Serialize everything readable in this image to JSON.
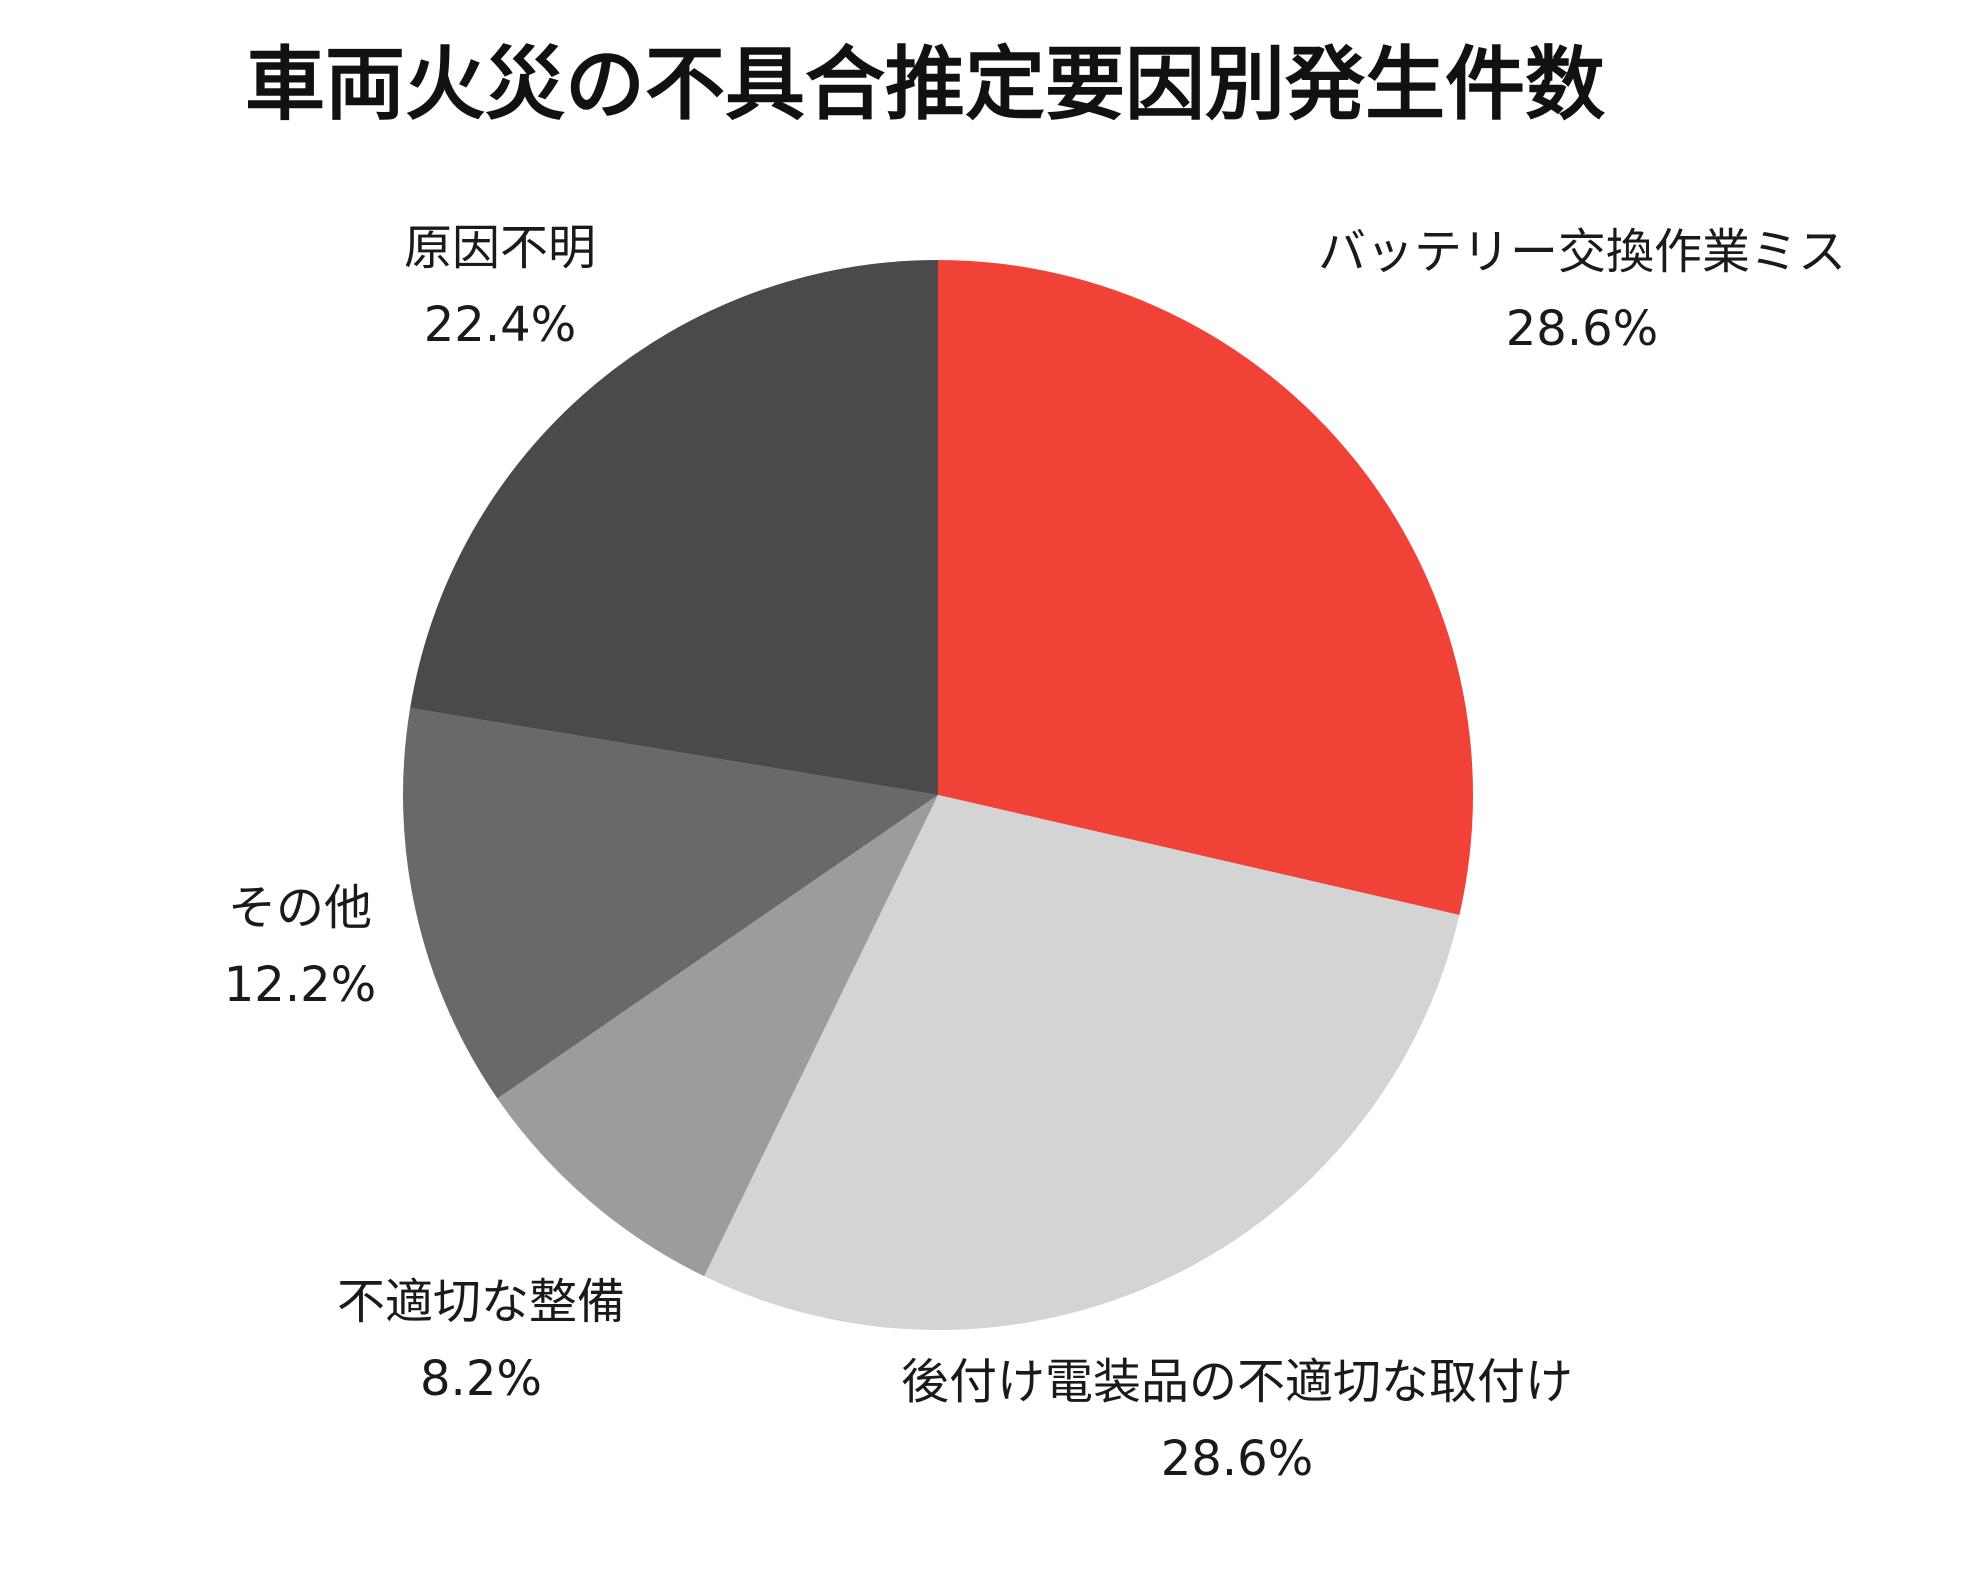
{
  "chart_data": {
    "type": "pie",
    "title": "車両火災の不具合推定要因別発生件数",
    "unit": "%",
    "slices": [
      {
        "label": "バッテリー交換作業ミス",
        "value": 28.6,
        "value_text": "28.6%",
        "color": "#f04236"
      },
      {
        "label": "後付け電装品の不適切な取付け",
        "value": 28.6,
        "value_text": "28.6%",
        "color": "#d4d4d4"
      },
      {
        "label": "不適切な整備",
        "value": 8.2,
        "value_text": "8.2%",
        "color": "#9c9c9c"
      },
      {
        "label": "その他",
        "value": 12.2,
        "value_text": "12.2%",
        "color": "#696969"
      },
      {
        "label": "原因不明",
        "value": 22.4,
        "value_text": "22.4%",
        "color": "#4a4a4a"
      }
    ],
    "start_angle_deg": 0,
    "direction": "clockwise"
  }
}
